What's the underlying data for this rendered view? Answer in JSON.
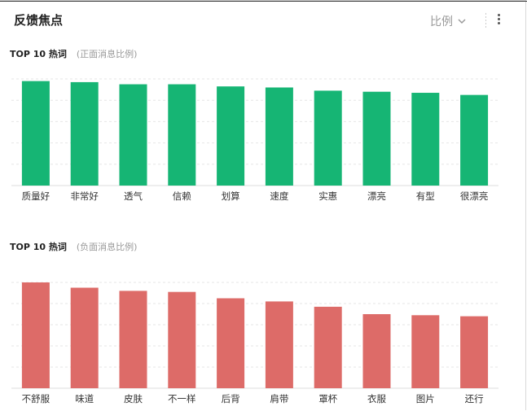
{
  "header": {
    "title": "反馈焦点",
    "selector_label": "比例",
    "selector_icon": "chevron-down-icon",
    "menu_icon": "more-vertical-icon"
  },
  "sections": [
    {
      "title": "TOP 10 热词",
      "subtitle": "(正面消息比例)"
    },
    {
      "title": "TOP 10 热词",
      "subtitle": "(负面消息比例)"
    }
  ],
  "chart_data": [
    {
      "type": "bar",
      "categories": [
        "质量好",
        "非常好",
        "透气",
        "信赖",
        "划算",
        "速度",
        "实惠",
        "漂亮",
        "有型",
        "很漂亮"
      ],
      "values": [
        98,
        97,
        95,
        95,
        93,
        92,
        89,
        88,
        87,
        85
      ],
      "ylim": [
        0,
        100
      ],
      "grid": true,
      "color": "#16b574"
    },
    {
      "type": "bar",
      "categories": [
        "不舒服",
        "味道",
        "皮肤",
        "不一样",
        "后背",
        "肩带",
        "罩杯",
        "衣服",
        "图片",
        "还行"
      ],
      "values": [
        100,
        95,
        92,
        91,
        85,
        82,
        77,
        70,
        69,
        68
      ],
      "ylim": [
        0,
        100
      ],
      "grid": true,
      "color": "#dd6b68"
    }
  ]
}
